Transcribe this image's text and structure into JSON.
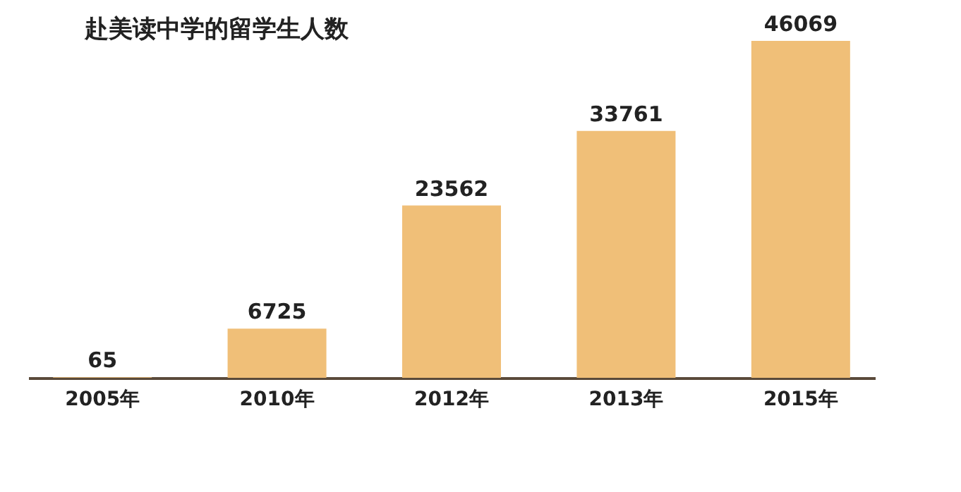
{
  "chart_data": {
    "type": "bar",
    "title": "赴美读中学的留学生人数",
    "categories": [
      "2005年",
      "2010年",
      "2012年",
      "2013年",
      "2015年"
    ],
    "values": [
      65,
      6725,
      23562,
      33761,
      46069
    ],
    "color": "#f0bf78",
    "data_labels": true,
    "grid": false
  }
}
